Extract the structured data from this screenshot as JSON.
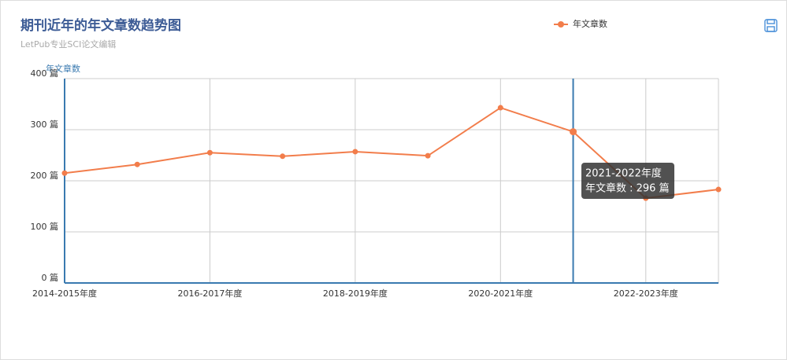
{
  "chart_data": {
    "type": "line",
    "title": "期刊近年的年文章数趋势图",
    "subtitle": "LetPub专业SCI论文编辑",
    "y_axis_name": "年文章数",
    "categories": [
      "2014-2015年度",
      null,
      "2016-2017年度",
      null,
      "2018-2019年度",
      null,
      "2020-2021年度",
      "2021-2022年度",
      "2022-2023年度",
      null
    ],
    "xlabel_interval": 2,
    "series": [
      {
        "name": "年文章数",
        "color": "#f27d4b",
        "values": [
          215,
          232,
          255,
          248,
          257,
          249,
          343,
          296,
          166,
          183
        ]
      }
    ],
    "ylim": [
      0,
      400
    ],
    "yticks": [
      {
        "value": 0,
        "label": "0 篇"
      },
      {
        "value": 100,
        "label": "100 篇"
      },
      {
        "value": 200,
        "label": "200 篇"
      },
      {
        "value": 300,
        "label": "300 篇"
      },
      {
        "value": 400,
        "label": "400 篇"
      }
    ],
    "grid": true,
    "legend": "top-right",
    "tooltip_index": 7,
    "tooltip_text": "年文章数 : 296 篇"
  }
}
